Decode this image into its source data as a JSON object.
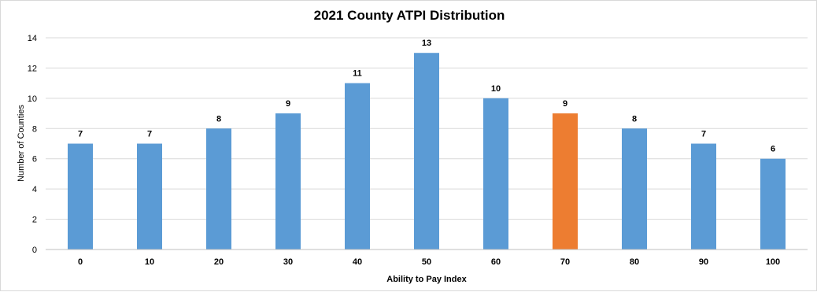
{
  "chart_data": {
    "type": "bar",
    "title": "2021 County ATPI Distribution",
    "xlabel": "Ability  to Pay Index",
    "ylabel": "Number of Counties",
    "categories": [
      "0",
      "10",
      "20",
      "30",
      "40",
      "50",
      "60",
      "70",
      "80",
      "90",
      "100"
    ],
    "values": [
      7,
      7,
      8,
      9,
      11,
      13,
      10,
      9,
      8,
      7,
      6
    ],
    "ylim": [
      0,
      14
    ],
    "yticks": [
      0,
      2,
      4,
      6,
      8,
      10,
      12,
      14
    ],
    "grid": true,
    "data_labels": true,
    "colors": {
      "bar": "#5b9bd5",
      "highlight": "#ed7d31",
      "grid": "#d9d9d9",
      "axis": "#bfbfbf"
    },
    "highlight_category": "70"
  }
}
